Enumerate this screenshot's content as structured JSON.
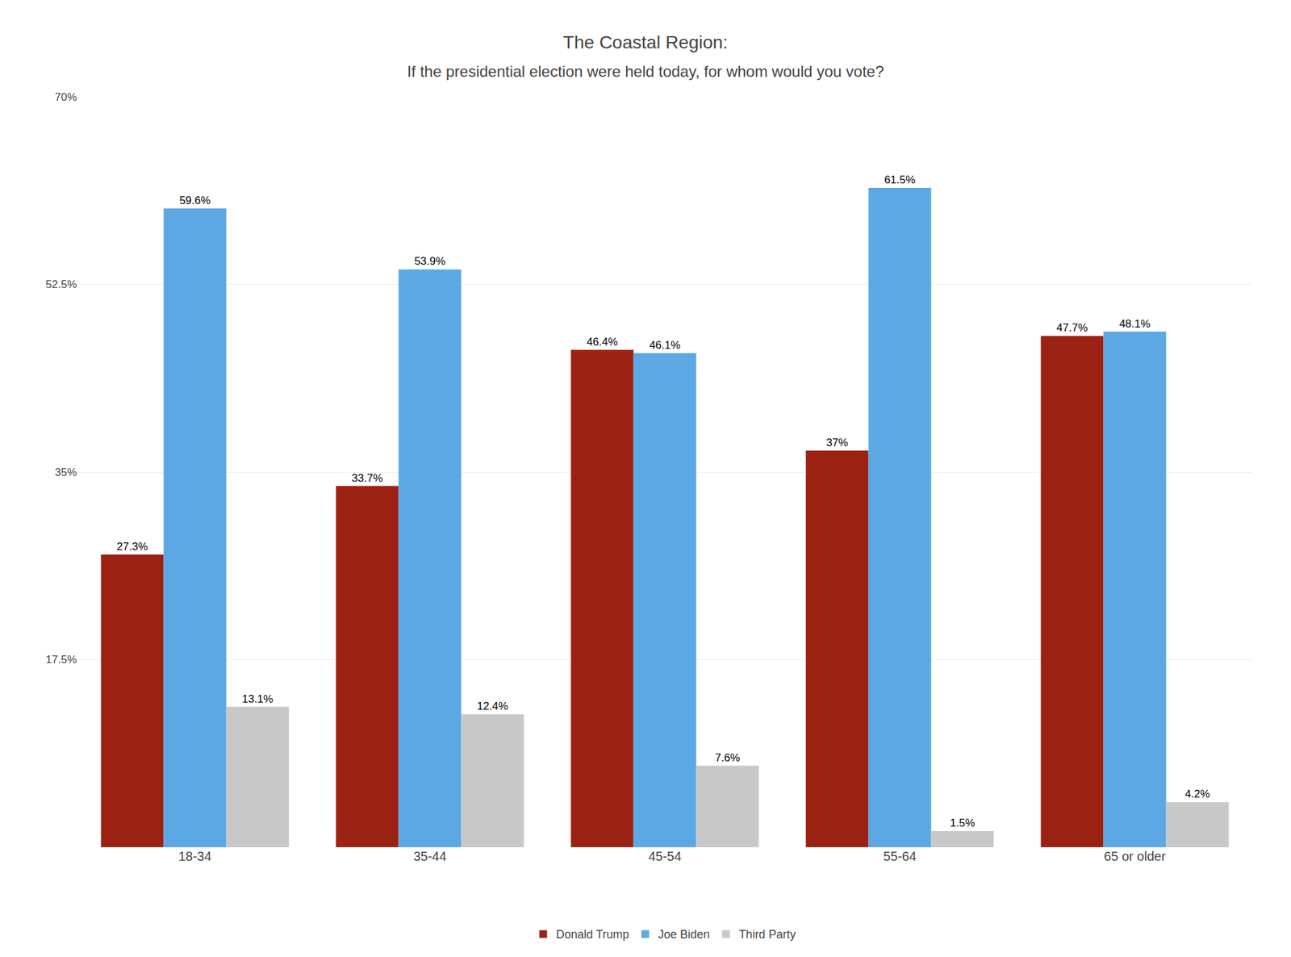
{
  "chart_data": {
    "type": "bar",
    "title": "The Coastal Region:",
    "subtitle": "If the presidential election were held today, for whom would you vote?",
    "categories": [
      "18-34",
      "35-44",
      "45-54",
      "55-64",
      "65 or older"
    ],
    "series": [
      {
        "name": "Donald Trump",
        "color": "#9B2213",
        "values": [
          27.3,
          33.7,
          46.4,
          37.0,
          47.7
        ],
        "value_labels": [
          "27.3%",
          "33.7%",
          "46.4%",
          "37%",
          "47.7%"
        ]
      },
      {
        "name": "Joe Biden",
        "color": "#5BA8E5",
        "values": [
          59.6,
          53.9,
          46.1,
          61.5,
          48.1
        ],
        "value_labels": [
          "59.6%",
          "53.9%",
          "46.1%",
          "61.5%",
          "48.1%"
        ]
      },
      {
        "name": "Third Party",
        "color": "#C8C8C8",
        "values": [
          13.1,
          12.4,
          7.6,
          1.5,
          4.2
        ],
        "value_labels": [
          "13.1%",
          "12.4%",
          "7.6%",
          "1.5%",
          "4.2%"
        ]
      }
    ],
    "ylim": [
      0,
      70
    ],
    "yticks": [
      {
        "value": 0,
        "label": ""
      },
      {
        "value": 17.5,
        "label": "17.5%"
      },
      {
        "value": 35,
        "label": "35%"
      },
      {
        "value": 52.5,
        "label": "52.5%"
      },
      {
        "value": 70,
        "label": "70%"
      }
    ],
    "grid": true,
    "legend": "bottom",
    "data_labels": true
  }
}
